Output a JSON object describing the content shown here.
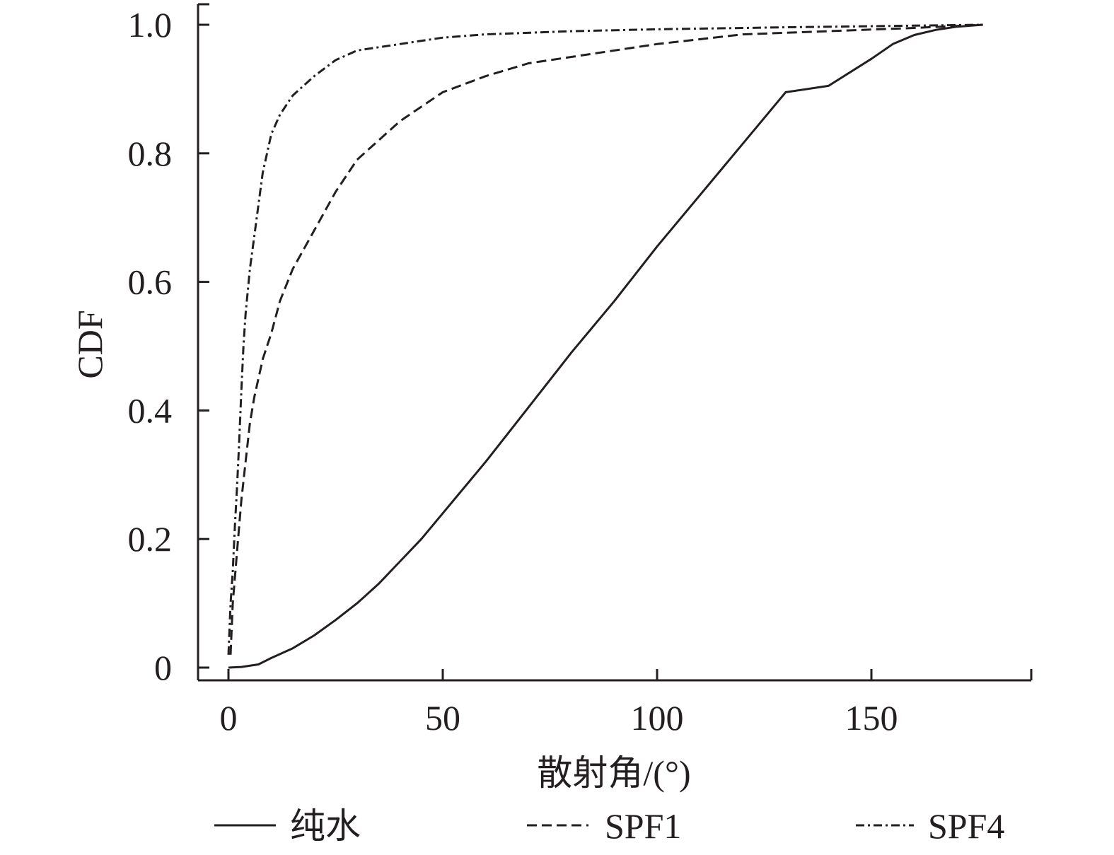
{
  "chart_data": {
    "type": "line",
    "title": "",
    "xlabel": "散射角/(°)",
    "ylabel": "CDF",
    "xlim": [
      -7,
      187
    ],
    "ylim": [
      -0.02,
      1.03
    ],
    "xticks": [
      0,
      50,
      100,
      150
    ],
    "xtick_labels": [
      "0",
      "50",
      "100",
      "150"
    ],
    "yticks": [
      0,
      0.2,
      0.4,
      0.6,
      0.8,
      1.0
    ],
    "ytick_labels": [
      "0",
      "0.2",
      "0.4",
      "0.6",
      "0.8",
      "1.0"
    ],
    "grid": false,
    "legend_position": "bottom",
    "series": [
      {
        "name": "纯水",
        "style": "solid",
        "color": "#231f20",
        "x": [
          0,
          3,
          7,
          10,
          15,
          20,
          25,
          30,
          35,
          40,
          45,
          50,
          60,
          70,
          80,
          90,
          100,
          110,
          120,
          130,
          140,
          150,
          155,
          160,
          165,
          170,
          176
        ],
        "y": [
          0.0,
          0.001,
          0.005,
          0.015,
          0.03,
          0.05,
          0.074,
          0.1,
          0.13,
          0.165,
          0.2,
          0.24,
          0.32,
          0.405,
          0.49,
          0.57,
          0.655,
          0.735,
          0.815,
          0.895,
          0.905,
          0.947,
          0.97,
          0.984,
          0.992,
          0.997,
          1.0
        ]
      },
      {
        "name": "SPF1",
        "style": "dashed",
        "color": "#231f20",
        "x": [
          0.5,
          1,
          2,
          3,
          4,
          5,
          6,
          8,
          10,
          12,
          15,
          20,
          25,
          30,
          40,
          50,
          60,
          70,
          80,
          100,
          120,
          140,
          160,
          176
        ],
        "y": [
          0.02,
          0.1,
          0.18,
          0.26,
          0.32,
          0.38,
          0.42,
          0.48,
          0.52,
          0.57,
          0.62,
          0.68,
          0.74,
          0.79,
          0.85,
          0.895,
          0.92,
          0.94,
          0.95,
          0.97,
          0.985,
          0.99,
          0.995,
          1.0
        ]
      },
      {
        "name": "SPF4",
        "style": "dashdot",
        "color": "#231f20",
        "x": [
          0,
          0.5,
          1,
          1.5,
          2,
          2.5,
          3,
          3.5,
          4,
          5,
          6,
          7,
          8,
          10,
          12,
          15,
          20,
          25,
          30,
          40,
          50,
          60,
          80,
          100,
          130,
          176
        ],
        "y": [
          0.02,
          0.1,
          0.15,
          0.22,
          0.28,
          0.35,
          0.43,
          0.5,
          0.55,
          0.62,
          0.67,
          0.72,
          0.77,
          0.83,
          0.86,
          0.89,
          0.92,
          0.945,
          0.96,
          0.97,
          0.98,
          0.985,
          0.99,
          0.993,
          0.996,
          1.0
        ]
      }
    ]
  }
}
